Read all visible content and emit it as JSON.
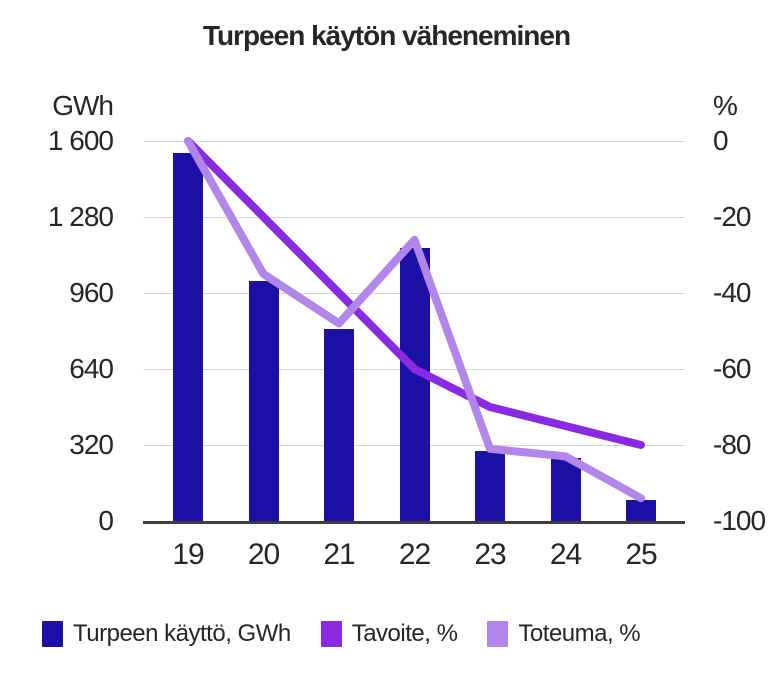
{
  "title": "Turpeen käytön väheneminen",
  "left_axis": {
    "unit": "GWh",
    "tick_labels": [
      "1 600",
      "1 280",
      "960",
      "640",
      "320",
      "0"
    ],
    "tick_values": [
      1600,
      1280,
      960,
      640,
      320,
      0
    ]
  },
  "right_axis": {
    "unit": "%",
    "tick_labels": [
      "0",
      "-20",
      "-40",
      "-60",
      "-80",
      "-100"
    ],
    "tick_values": [
      0,
      -20,
      -40,
      -60,
      -80,
      -100
    ]
  },
  "x_axis": {
    "labels": [
      "19",
      "20",
      "21",
      "22",
      "23",
      "24",
      "25"
    ]
  },
  "legend": [
    {
      "label": "Turpeen käyttö, GWh",
      "color": "#1c10a6"
    },
    {
      "label": "Tavoite, %",
      "color": "#8a2ae2"
    },
    {
      "label": "Toteuma, %",
      "color": "#b285ea"
    }
  ],
  "colors": {
    "bar": "#1c10a6",
    "tavoite_line": "#8a2ae2",
    "toteuma_line": "#b285ea",
    "gridline": "#d9d9d9",
    "baseline": "#3d3d3d",
    "text": "#262626"
  },
  "chart_data": {
    "type": "bar+line combo",
    "title": "Turpeen käytön väheneminen",
    "categories": [
      "19",
      "20",
      "21",
      "22",
      "23",
      "24",
      "25"
    ],
    "series": [
      {
        "name": "Turpeen käyttö, GWh",
        "type": "bar",
        "axis": "left",
        "values": [
          1550,
          1010,
          810,
          1150,
          295,
          265,
          90
        ]
      },
      {
        "name": "Tavoite, %",
        "type": "line",
        "axis": "right",
        "values": [
          0,
          -20,
          -40,
          -60,
          -70,
          -75,
          -80
        ]
      },
      {
        "name": "Toteuma, %",
        "type": "line",
        "axis": "right",
        "values": [
          0,
          -35,
          -48,
          -26,
          -81,
          -83,
          -94
        ]
      }
    ],
    "left_ylabel": "GWh",
    "right_ylabel": "%",
    "left_ylim": [
      0,
      1600
    ],
    "right_ylim": [
      -100,
      0
    ],
    "grid": true,
    "legend_position": "bottom"
  }
}
